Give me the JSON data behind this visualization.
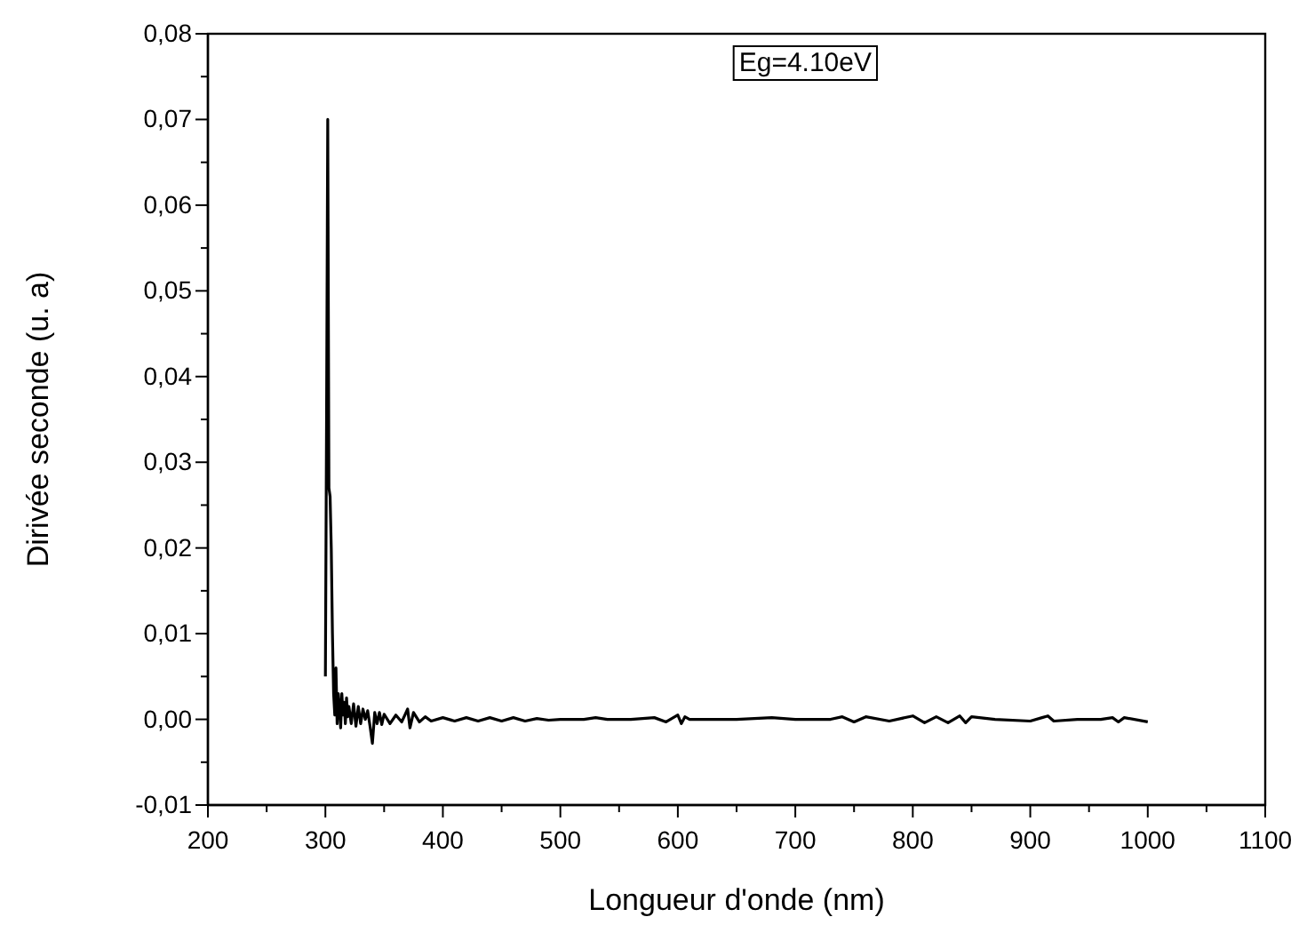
{
  "chart_data": {
    "type": "line",
    "xlabel": "Longueur d'onde (nm)",
    "ylabel": "Dirivée seconde (u. a)",
    "annotations": [
      "Eg=4.10eV"
    ],
    "xlim": [
      200,
      1100
    ],
    "ylim": [
      -0.01,
      0.08
    ],
    "xticks": [
      200,
      {
        "value": 250,
        "label": null
      },
      300,
      {
        "value": 350,
        "label": null
      },
      400,
      {
        "value": 450,
        "label": null
      },
      500,
      {
        "value": 550,
        "label": null
      },
      600,
      {
        "value": 650,
        "label": null
      },
      700,
      {
        "value": 750,
        "label": null
      },
      800,
      {
        "value": 850,
        "label": null
      },
      900,
      {
        "value": 950,
        "label": null
      },
      1000,
      {
        "value": 1050,
        "label": null
      },
      1100
    ],
    "yticks": [
      {
        "value": -0.01,
        "label": "-0,01"
      },
      {
        "value": -0.005,
        "label": null
      },
      {
        "value": 0,
        "label": "0,00"
      },
      {
        "value": 0.005,
        "label": null
      },
      {
        "value": 0.01,
        "label": "0,01"
      },
      {
        "value": 0.015,
        "label": null
      },
      {
        "value": 0.02,
        "label": "0,02"
      },
      {
        "value": 0.025,
        "label": null
      },
      {
        "value": 0.03,
        "label": "0,03"
      },
      {
        "value": 0.035,
        "label": null
      },
      {
        "value": 0.04,
        "label": "0,04"
      },
      {
        "value": 0.045,
        "label": null
      },
      {
        "value": 0.05,
        "label": "0,05"
      },
      {
        "value": 0.055,
        "label": null
      },
      {
        "value": 0.06,
        "label": "0,06"
      },
      {
        "value": 0.065,
        "label": null
      },
      {
        "value": 0.07,
        "label": "0,07"
      },
      {
        "value": 0.075,
        "label": null
      },
      {
        "value": 0.08,
        "label": "0,08"
      }
    ],
    "grid": false,
    "marker": "none",
    "line_style": "solid",
    "series": [
      {
        "color": "#000000",
        "x": [
          300,
          301,
          302,
          303,
          304,
          305,
          306,
          307,
          308,
          309,
          310,
          311,
          312,
          313,
          314,
          315,
          316,
          317,
          318,
          319,
          320,
          322,
          324,
          326,
          328,
          330,
          332,
          334,
          336,
          338,
          340,
          342,
          344,
          346,
          348,
          350,
          355,
          360,
          365,
          370,
          372,
          375,
          380,
          385,
          390,
          400,
          410,
          420,
          430,
          440,
          450,
          460,
          470,
          480,
          490,
          500,
          520,
          530,
          540,
          560,
          580,
          590,
          600,
          603,
          606,
          610,
          620,
          650,
          680,
          700,
          730,
          740,
          750,
          760,
          780,
          800,
          810,
          820,
          830,
          840,
          845,
          850,
          870,
          900,
          910,
          915,
          920,
          940,
          960,
          970,
          975,
          980,
          1000
        ],
        "values": [
          0.005,
          0.035,
          0.07,
          0.027,
          0.026,
          0.02,
          0.01,
          0.003,
          0.0005,
          0.006,
          -0.0005,
          0.003,
          0.0015,
          -0.001,
          0.003,
          0.0005,
          0.002,
          -0.0005,
          0.0025,
          0.0003,
          0.0015,
          -0.0005,
          0.0018,
          -0.0008,
          0.0015,
          -0.0005,
          0.0012,
          0,
          0.001,
          -0.0008,
          -0.0028,
          0.0008,
          -0.0005,
          0.0008,
          -0.0006,
          0.0006,
          -0.0005,
          0.0005,
          -0.0003,
          0.0012,
          -0.001,
          0.0008,
          -0.0003,
          0.0003,
          -0.0002,
          0.0002,
          -0.0002,
          0.0002,
          -0.0002,
          0.0002,
          -0.0002,
          0.0002,
          -0.0002,
          0.0001,
          -0.0001,
          0,
          0,
          0.0002,
          0,
          0,
          0.0002,
          -0.0003,
          0.0005,
          -0.0005,
          0.0003,
          0,
          0,
          0,
          0.0002,
          0,
          0,
          0.0003,
          -0.0003,
          0.0003,
          -0.0002,
          0.0004,
          -0.0004,
          0.0003,
          -0.0004,
          0.0004,
          -0.0004,
          0.0003,
          0,
          -0.0002,
          0.0002,
          0.0004,
          -0.0002,
          0,
          0,
          0.0002,
          -0.0003,
          0.0002,
          -0.0003
        ]
      }
    ]
  }
}
